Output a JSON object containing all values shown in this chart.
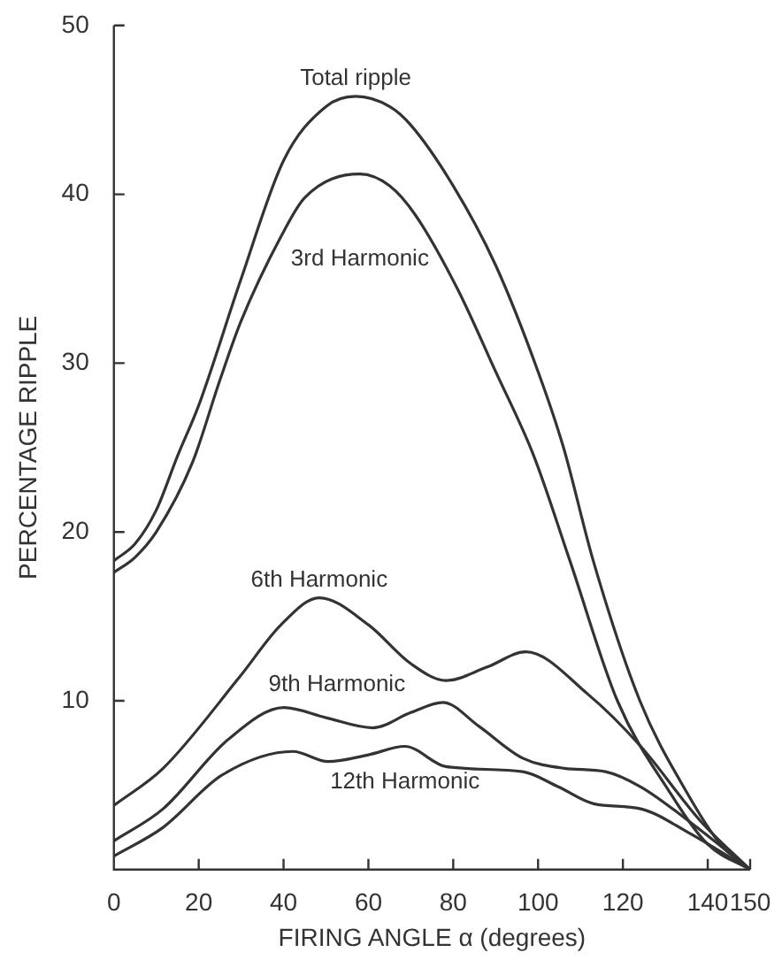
{
  "chart_data": {
    "type": "line",
    "xlabel": "FIRING ANGLE α (degrees)",
    "ylabel": "PERCENTAGE RIPPLE",
    "xlim": [
      0,
      150
    ],
    "xticks": [
      0,
      20,
      40,
      60,
      80,
      100,
      120,
      140,
      150
    ],
    "ylim": [
      0,
      50
    ],
    "yticks": [
      10,
      20,
      30,
      40,
      50
    ],
    "grid": false,
    "legend": false,
    "marker": "none",
    "line_style": "solid",
    "series": [
      {
        "name": "Total ripple",
        "color": "#333333",
        "x": [
          0,
          5,
          10,
          15,
          20,
          30,
          40,
          50,
          57,
          65,
          70,
          80,
          90,
          100,
          106,
          113,
          124,
          135,
          143,
          150
        ],
        "values": [
          18.3,
          19.3,
          21.3,
          24.5,
          27.5,
          35,
          42,
          45.2,
          45.8,
          45.2,
          44.1,
          40.5,
          35.8,
          29.5,
          25,
          18.3,
          10,
          4.6,
          1.5,
          0
        ]
      },
      {
        "name": "3rd Harmonic",
        "color": "#333333",
        "x": [
          0,
          5,
          10,
          18.5,
          25,
          30,
          39.4,
          45,
          58,
          65,
          71,
          81,
          90,
          99,
          107.5,
          118.7,
          131,
          140,
          150
        ],
        "values": [
          17.6,
          18.5,
          20,
          24.1,
          29,
          32.5,
          37.5,
          39.8,
          41.2,
          40.5,
          38.8,
          34.4,
          29.5,
          24.5,
          18.3,
          10,
          4.6,
          1.5,
          0
        ]
      },
      {
        "name": "6th Harmonic",
        "color": "#333333",
        "x": [
          0,
          11.6,
          29.6,
          39.4,
          48.4,
          60,
          70,
          78.3,
          88,
          97.1,
          111.7,
          124.2,
          138.2,
          150
        ],
        "values": [
          3.8,
          6,
          11.4,
          14.5,
          16.1,
          14.5,
          12.2,
          11.2,
          12,
          12.9,
          10.4,
          7.3,
          2.9,
          0
        ]
      },
      {
        "name": "9th Harmonic",
        "color": "#333333",
        "x": [
          0,
          11.6,
          26.9,
          40.1,
          50,
          61,
          70,
          77.6,
          86,
          96.4,
          106.2,
          115.9,
          124.2,
          135.4,
          150
        ],
        "values": [
          1.7,
          3.6,
          7.7,
          9.6,
          9,
          8.4,
          9.3,
          9.9,
          8.5,
          6.6,
          6,
          5.8,
          4.9,
          2.9,
          0
        ]
      },
      {
        "name": "12th Harmonic",
        "color": "#333333",
        "x": [
          0,
          11.6,
          25.5,
          42.2,
          50.5,
          60,
          68.6,
          78.3,
          96.4,
          104.8,
          113.1,
          124.2,
          135.4,
          150
        ],
        "values": [
          0.8,
          2.5,
          5.6,
          7,
          6.4,
          6.8,
          7.3,
          6.1,
          5.8,
          4.9,
          3.9,
          3.6,
          2.2,
          0
        ]
      }
    ]
  }
}
